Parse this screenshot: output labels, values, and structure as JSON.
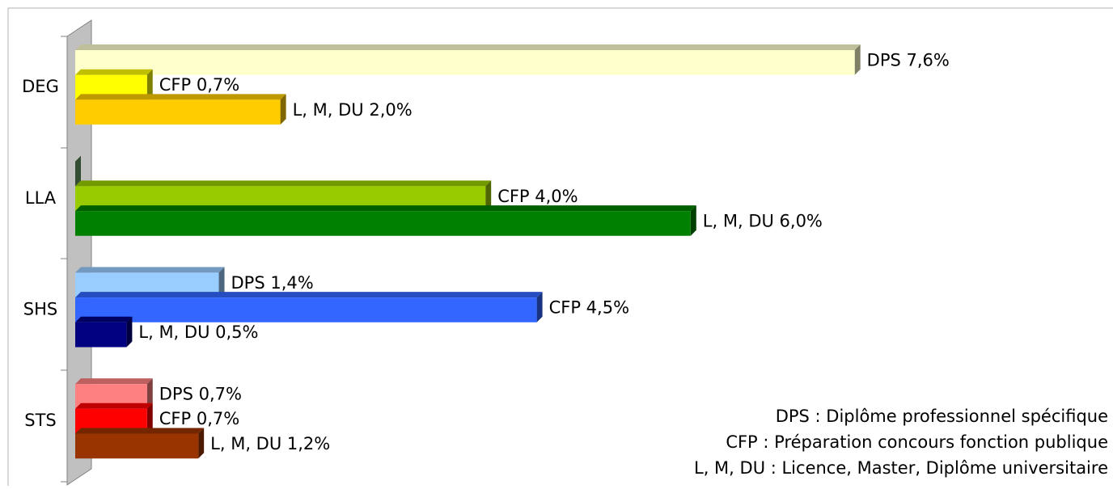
{
  "chart_data": {
    "type": "bar",
    "orientation": "horizontal",
    "categories": [
      "DEG",
      "LLA",
      "SHS",
      "STS"
    ],
    "series": [
      {
        "colors": [
          "#ffffcc",
          "#669966",
          "#99ccff",
          "#ff8080"
        ],
        "values": [
          7.6,
          0,
          1.4,
          0.7
        ],
        "value_labels": [
          "DPS 7,6%",
          null,
          "DPS 1,4%",
          "DPS 0,7%"
        ]
      },
      {
        "colors": [
          "#ffff00",
          "#99cc00",
          "#3366ff",
          "#ff0000"
        ],
        "values": [
          0.7,
          4.0,
          4.5,
          0.7
        ],
        "value_labels": [
          "CFP 0,7%",
          "CFP 4,0%",
          "CFP 4,5%",
          "CFP 0,7%"
        ]
      },
      {
        "colors": [
          "#ffcc00",
          "#008000",
          "#000080",
          "#993300"
        ],
        "values": [
          2.0,
          6.0,
          0.5,
          1.2
        ],
        "value_labels": [
          "L, M, DU 2,0%",
          "L, M, DU 6,0%",
          "L, M, DU 0,5%",
          "L, M, DU 1,2%"
        ]
      }
    ],
    "annotations": [
      "DPS : Diplôme professionnel spécifique",
      "CFP : Préparation concours fonction publique",
      "L, M, DU : Licence, Master, Diplôme universitaire"
    ]
  }
}
